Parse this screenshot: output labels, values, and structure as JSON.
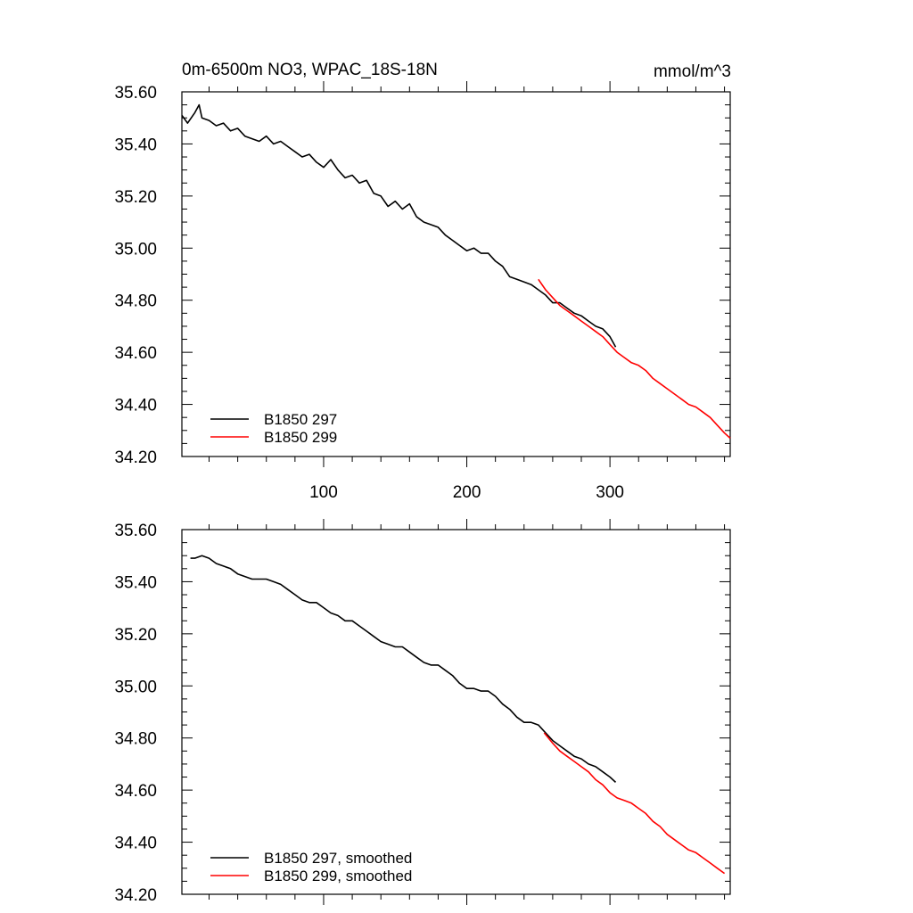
{
  "chart_data": [
    {
      "type": "line",
      "title": "0m-6500m NO3, WPAC_18S-18N",
      "units_label": "mmol/m^3",
      "xlim": [
        1,
        384
      ],
      "ylim": [
        34.2,
        35.6
      ],
      "x_ticks": [
        100,
        200,
        300
      ],
      "x_tick_labels": [
        "100",
        "200",
        "300"
      ],
      "y_ticks": [
        34.2,
        34.4,
        34.6,
        34.8,
        35.0,
        35.2,
        35.4,
        35.6
      ],
      "y_tick_labels": [
        "34.20",
        "34.40",
        "34.60",
        "34.80",
        "35.00",
        "35.20",
        "35.40",
        "35.60"
      ],
      "grid": false,
      "legend_position": "bottom-left",
      "series": [
        {
          "name": "B1850 297",
          "color": "#000000",
          "x": [
            1,
            5,
            10,
            13,
            15,
            20,
            25,
            30,
            35,
            40,
            45,
            50,
            55,
            60,
            65,
            70,
            75,
            80,
            85,
            90,
            95,
            100,
            105,
            110,
            115,
            120,
            125,
            130,
            135,
            140,
            145,
            150,
            155,
            160,
            165,
            170,
            175,
            180,
            185,
            190,
            195,
            200,
            205,
            210,
            215,
            220,
            225,
            230,
            235,
            240,
            245,
            250,
            255,
            260,
            265,
            270,
            275,
            280,
            285,
            290,
            295,
            300,
            304
          ],
          "y": [
            35.51,
            35.48,
            35.52,
            35.55,
            35.5,
            35.49,
            35.47,
            35.48,
            35.45,
            35.46,
            35.43,
            35.42,
            35.41,
            35.43,
            35.4,
            35.41,
            35.39,
            35.37,
            35.35,
            35.36,
            35.33,
            35.31,
            35.34,
            35.3,
            35.27,
            35.28,
            35.25,
            35.26,
            35.21,
            35.2,
            35.16,
            35.18,
            35.15,
            35.17,
            35.12,
            35.1,
            35.09,
            35.08,
            35.05,
            35.03,
            35.01,
            34.99,
            35.0,
            34.98,
            34.98,
            34.95,
            34.93,
            34.89,
            34.88,
            34.87,
            34.86,
            34.84,
            34.82,
            34.79,
            34.79,
            34.77,
            34.75,
            34.74,
            34.72,
            34.7,
            34.69,
            34.66,
            34.62
          ]
        },
        {
          "name": "B1850 299",
          "color": "#ff0000",
          "x": [
            250,
            255,
            260,
            265,
            270,
            275,
            280,
            285,
            290,
            295,
            300,
            305,
            310,
            315,
            320,
            325,
            330,
            335,
            340,
            345,
            350,
            355,
            360,
            365,
            370,
            375,
            380,
            384
          ],
          "y": [
            34.88,
            34.84,
            34.81,
            34.78,
            34.76,
            34.74,
            34.72,
            34.7,
            34.68,
            34.66,
            34.63,
            34.6,
            34.58,
            34.56,
            34.55,
            34.53,
            34.5,
            34.48,
            34.46,
            34.44,
            34.42,
            34.4,
            34.39,
            34.37,
            34.35,
            34.32,
            34.29,
            34.27
          ]
        }
      ]
    },
    {
      "type": "line",
      "xlim": [
        1,
        384
      ],
      "ylim": [
        34.2,
        35.6
      ],
      "x_ticks": [
        100,
        200,
        300
      ],
      "y_ticks": [
        34.2,
        34.4,
        34.6,
        34.8,
        35.0,
        35.2,
        35.4,
        35.6
      ],
      "y_tick_labels": [
        "34.20",
        "34.40",
        "34.60",
        "34.80",
        "35.00",
        "35.20",
        "35.40",
        "35.60"
      ],
      "grid": false,
      "legend_position": "bottom-left",
      "series": [
        {
          "name": "B1850 297, smoothed",
          "color": "#000000",
          "x": [
            7,
            10,
            15,
            20,
            25,
            30,
            35,
            40,
            45,
            50,
            55,
            60,
            65,
            70,
            75,
            80,
            85,
            90,
            95,
            100,
            105,
            110,
            115,
            120,
            125,
            130,
            135,
            140,
            145,
            150,
            155,
            160,
            165,
            170,
            175,
            180,
            185,
            190,
            195,
            200,
            205,
            210,
            215,
            220,
            225,
            230,
            235,
            240,
            245,
            250,
            255,
            260,
            265,
            270,
            275,
            280,
            285,
            290,
            295,
            300,
            304
          ],
          "y": [
            35.49,
            35.49,
            35.5,
            35.49,
            35.47,
            35.46,
            35.45,
            35.43,
            35.42,
            35.41,
            35.41,
            35.41,
            35.4,
            35.39,
            35.37,
            35.35,
            35.33,
            35.32,
            35.32,
            35.3,
            35.28,
            35.27,
            35.25,
            35.25,
            35.23,
            35.21,
            35.19,
            35.17,
            35.16,
            35.15,
            35.15,
            35.13,
            35.11,
            35.09,
            35.08,
            35.08,
            35.06,
            35.04,
            35.01,
            34.99,
            34.99,
            34.98,
            34.98,
            34.96,
            34.93,
            34.91,
            34.88,
            34.86,
            34.86,
            34.85,
            34.82,
            34.79,
            34.77,
            34.75,
            34.73,
            34.72,
            34.7,
            34.69,
            34.67,
            34.65,
            34.63
          ]
        },
        {
          "name": "B1850 299, smoothed",
          "color": "#ff0000",
          "x": [
            254,
            260,
            265,
            270,
            275,
            280,
            285,
            290,
            295,
            300,
            305,
            310,
            315,
            320,
            325,
            330,
            335,
            340,
            345,
            350,
            355,
            360,
            365,
            370,
            375,
            380
          ],
          "y": [
            34.82,
            34.78,
            34.75,
            34.73,
            34.71,
            34.69,
            34.67,
            34.64,
            34.62,
            34.59,
            34.57,
            34.56,
            34.55,
            34.53,
            34.51,
            34.48,
            34.46,
            34.43,
            34.41,
            34.39,
            34.37,
            34.36,
            34.34,
            34.32,
            34.3,
            34.28
          ]
        }
      ]
    }
  ]
}
